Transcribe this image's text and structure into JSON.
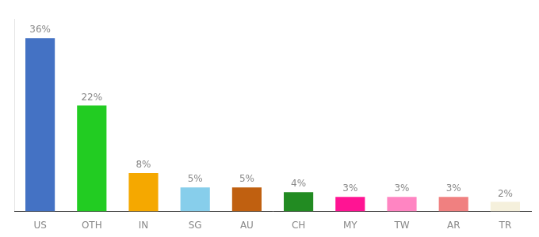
{
  "chart_data": {
    "type": "bar",
    "categories": [
      "US",
      "OTH",
      "IN",
      "SG",
      "AU",
      "CH",
      "MY",
      "TW",
      "AR",
      "TR"
    ],
    "values": [
      36,
      22,
      8,
      5,
      5,
      4,
      3,
      3,
      3,
      2
    ],
    "value_labels": [
      "36%",
      "22%",
      "8%",
      "5%",
      "5%",
      "4%",
      "3%",
      "3%",
      "3%",
      "2%"
    ],
    "colors": [
      "#4472c4",
      "#22cc22",
      "#f5a800",
      "#87ceeb",
      "#c06010",
      "#228b22",
      "#ff1493",
      "#ff85c2",
      "#f08080",
      "#f5f0dc"
    ],
    "ylim": [
      0,
      40
    ],
    "grid": false,
    "data_labels": true,
    "tick_labels": "x"
  }
}
